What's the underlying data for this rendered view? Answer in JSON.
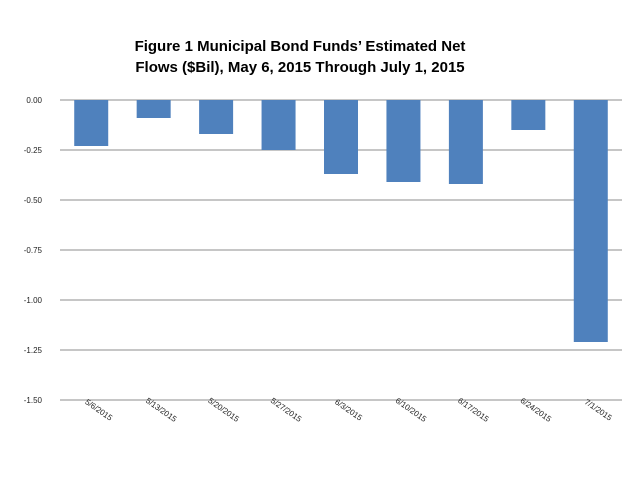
{
  "chart_data": {
    "type": "bar",
    "title_line1": "Figure 1 Municipal Bond Funds’ Estimated Net",
    "title_line2": "Flows ($Bil),  May 6, 2015 Through July 1, 2015",
    "xlabel": "",
    "ylabel": "",
    "categories": [
      "5/6/2015",
      "5/13/2015",
      "5/20/2015",
      "5/27/2015",
      "6/3/2015",
      "6/10/2015",
      "6/17/2015",
      "6/24/2015",
      "7/1/2015"
    ],
    "values": [
      -0.23,
      -0.09,
      -0.17,
      -0.25,
      -0.37,
      -0.41,
      -0.42,
      -0.15,
      -1.21
    ],
    "ylim": [
      -1.5,
      0
    ],
    "yticks": [
      "0.00",
      "-0.25",
      "-0.50",
      "-0.75",
      "-1.00",
      "-1.25",
      "-1.50"
    ],
    "ytick_values": [
      0,
      -0.25,
      -0.5,
      -0.75,
      -1.0,
      -1.25,
      -1.5
    ],
    "grid": true,
    "legend": "none",
    "bar_color": "#4f81bd"
  }
}
